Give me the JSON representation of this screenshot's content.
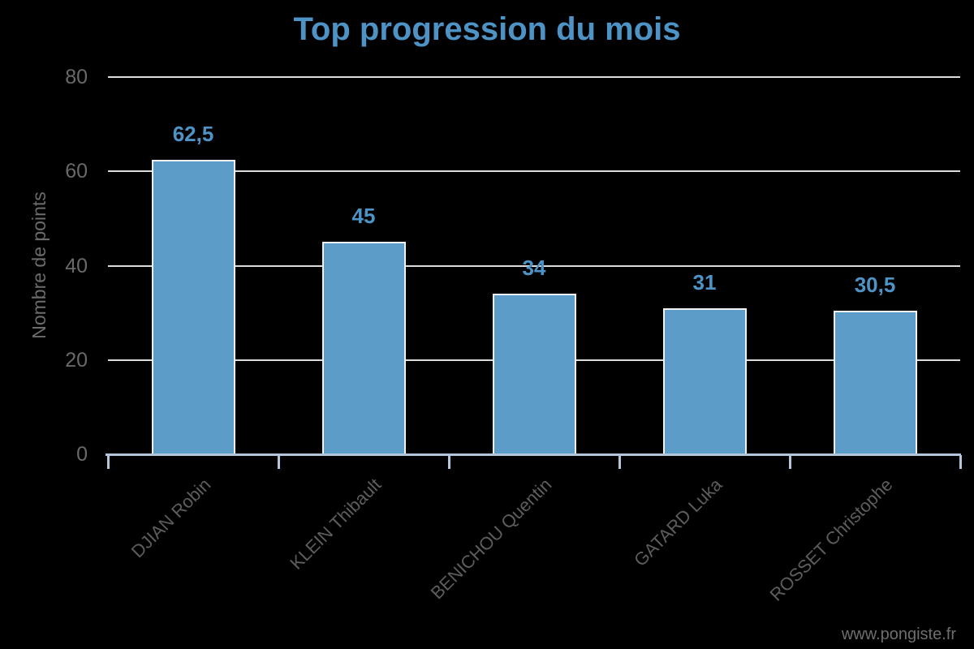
{
  "chart_data": {
    "type": "bar",
    "title": "Top progression du mois",
    "ylabel": "Nombre de points",
    "xlabel": "",
    "categories": [
      "DJIAN Robin",
      "KLEIN Thibault",
      "BENICHOU Quentin",
      "GATARD Luka",
      "ROSSET Christophe"
    ],
    "values": [
      62.5,
      45,
      34,
      31,
      30.5
    ],
    "value_labels": [
      "62,5",
      "45",
      "34",
      "31",
      "30,5"
    ],
    "ylim": [
      0,
      80
    ],
    "yticks": [
      0,
      20,
      40,
      60,
      80
    ],
    "ytick_labels": [
      "0",
      "20",
      "40",
      "60",
      "80"
    ],
    "grid": true,
    "legend": false,
    "x_tick_style": "boundary-ticks-below-axis",
    "x_label_rotation_deg": 45,
    "colors": {
      "background": "#000000",
      "bar_fill": "#5B9CC9",
      "bar_border": "#F2F2F2",
      "title_text": "#4E93C6",
      "value_label_text": "#4E93C6",
      "gridline": "#DCDCDC",
      "axis_line": "#B3C6DC",
      "y_tick_label_text": "#696969",
      "x_tick_label_text": "#5D5D5D",
      "axis_title_text": "#6B6B6B",
      "watermark_text": "#6E6E6E"
    }
  },
  "watermark": "www.pongiste.fr"
}
